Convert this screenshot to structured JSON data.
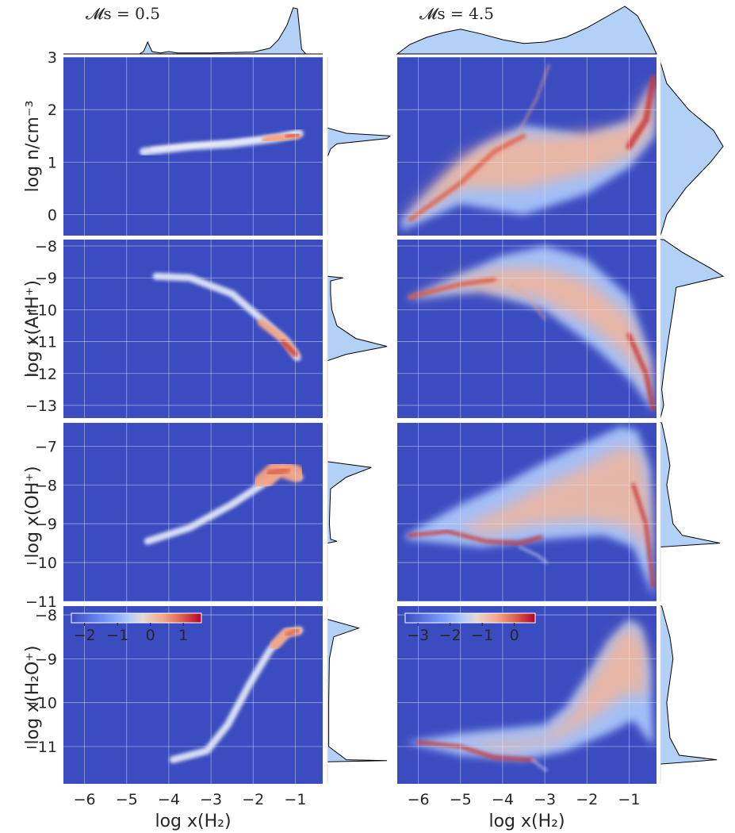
{
  "chart_data": {
    "type": "heatmap",
    "figure": "joint 2D histograms with marginal distributions",
    "xlabel": "log x(H₂)",
    "xlim": [
      -6.5,
      -0.35
    ],
    "xticks": [
      -6,
      -5,
      -4,
      -3,
      -2,
      -1
    ],
    "rows": [
      {
        "key": "n",
        "ylabel": "log n/cm⁻³",
        "ylim": [
          -0.4,
          3.0
        ],
        "yticks": [
          0,
          1,
          2,
          3
        ]
      },
      {
        "key": "ArH",
        "ylabel": "log x(ArH⁺)",
        "ylim": [
          -13.4,
          -7.8
        ],
        "yticks": [
          -8,
          -9,
          -10,
          -11,
          -12,
          -13
        ]
      },
      {
        "key": "OH",
        "ylabel": "log x(OH⁺)",
        "ylim": [
          -11.0,
          -6.4
        ],
        "yticks": [
          -7,
          -8,
          -9,
          -10,
          -11
        ]
      },
      {
        "key": "H2O",
        "ylabel": "log x(H₂O⁺)",
        "ylim": [
          -11.85,
          -7.8
        ],
        "yticks": [
          -8,
          -9,
          -10,
          -11
        ]
      }
    ],
    "columns": [
      {
        "title": "𝓜s = 0.5",
        "mach": 0.5,
        "colorbar": {
          "ticks": [
            -2,
            -1,
            0,
            1
          ],
          "range": [
            -2.4,
            1.55
          ]
        },
        "x_marginal": [
          [
            -4.7,
            0
          ],
          [
            -4.6,
            0.05
          ],
          [
            -4.5,
            0.25
          ],
          [
            -4.4,
            0.05
          ],
          [
            -4.2,
            0.02
          ],
          [
            -4.0,
            0.05
          ],
          [
            -3.8,
            0.02
          ],
          [
            -3,
            0.02
          ],
          [
            -2,
            0.04
          ],
          [
            -1.6,
            0.12
          ],
          [
            -1.4,
            0.3
          ],
          [
            -1.2,
            0.6
          ],
          [
            -1.05,
            0.97
          ],
          [
            -0.95,
            0.95
          ],
          [
            -0.85,
            0.1
          ],
          [
            -0.75,
            0
          ]
        ],
        "y_marginals": {
          "n": [
            [
              1.1,
              0
            ],
            [
              1.25,
              0.05
            ],
            [
              1.35,
              0.15
            ],
            [
              1.45,
              0.95
            ],
            [
              1.5,
              1.0
            ],
            [
              1.55,
              0.3
            ],
            [
              1.65,
              0
            ]
          ],
          "ArH": [
            [
              -8.95,
              0
            ],
            [
              -9.0,
              0.25
            ],
            [
              -9.1,
              0.05
            ],
            [
              -9.5,
              0.05
            ],
            [
              -10.0,
              0.07
            ],
            [
              -10.5,
              0.15
            ],
            [
              -10.9,
              0.45
            ],
            [
              -11.15,
              0.95
            ],
            [
              -11.4,
              0.3
            ],
            [
              -11.6,
              0
            ]
          ],
          "OH": [
            [
              -7.4,
              0
            ],
            [
              -7.55,
              0.7
            ],
            [
              -7.8,
              0.3
            ],
            [
              -8.1,
              0.05
            ],
            [
              -8.5,
              0.04
            ],
            [
              -9.0,
              0.03
            ],
            [
              -9.4,
              0.05
            ],
            [
              -9.45,
              0.15
            ],
            [
              -9.5,
              0
            ]
          ],
          "H2O": [
            [
              -8.1,
              0
            ],
            [
              -8.3,
              0.5
            ],
            [
              -8.5,
              0.1
            ],
            [
              -9.0,
              0.03
            ],
            [
              -10.0,
              0.02
            ],
            [
              -11.0,
              0.02
            ],
            [
              -11.3,
              0.3
            ],
            [
              -11.32,
              0.95
            ],
            [
              -11.35,
              0
            ]
          ]
        }
      },
      {
        "title": "𝓜s = 4.5",
        "mach": 4.5,
        "colorbar": {
          "ticks": [
            -3,
            -2,
            -1,
            0
          ],
          "range": [
            -3.4,
            0.65
          ]
        },
        "x_marginal": [
          [
            -6.5,
            0
          ],
          [
            -6.2,
            0.2
          ],
          [
            -5.8,
            0.35
          ],
          [
            -5.4,
            0.45
          ],
          [
            -5.0,
            0.52
          ],
          [
            -4.5,
            0.42
          ],
          [
            -4.0,
            0.3
          ],
          [
            -3.5,
            0.22
          ],
          [
            -3.0,
            0.25
          ],
          [
            -2.5,
            0.35
          ],
          [
            -2.0,
            0.55
          ],
          [
            -1.5,
            0.8
          ],
          [
            -1.1,
            1.0
          ],
          [
            -0.8,
            0.8
          ],
          [
            -0.5,
            0.3
          ],
          [
            -0.35,
            0
          ]
        ],
        "y_marginals": {
          "n": [
            [
              -0.4,
              0
            ],
            [
              0,
              0.1
            ],
            [
              0.5,
              0.4
            ],
            [
              1.0,
              0.8
            ],
            [
              1.3,
              1.0
            ],
            [
              1.6,
              0.85
            ],
            [
              2.0,
              0.45
            ],
            [
              2.5,
              0.1
            ],
            [
              2.9,
              0
            ]
          ],
          "ArH": [
            [
              -7.8,
              0.05
            ],
            [
              -8.2,
              0.35
            ],
            [
              -8.7,
              0.8
            ],
            [
              -8.95,
              1.0
            ],
            [
              -9.3,
              0.25
            ],
            [
              -10,
              0.2
            ],
            [
              -11,
              0.12
            ],
            [
              -12,
              0.05
            ],
            [
              -12.5,
              0.02
            ],
            [
              -13,
              0.05
            ],
            [
              -13.4,
              0
            ]
          ],
          "OH": [
            [
              -6.4,
              0.02
            ],
            [
              -7,
              0.1
            ],
            [
              -7.5,
              0.15
            ],
            [
              -8,
              0.1
            ],
            [
              -8.5,
              0.15
            ],
            [
              -9,
              0.2
            ],
            [
              -9.3,
              0.35
            ],
            [
              -9.5,
              0.95
            ],
            [
              -9.6,
              0
            ]
          ],
          "H2O": [
            [
              -7.8,
              0.02
            ],
            [
              -8.5,
              0.15
            ],
            [
              -9,
              0.2
            ],
            [
              -9.5,
              0.15
            ],
            [
              -10,
              0.1
            ],
            [
              -10.8,
              0.15
            ],
            [
              -11.2,
              0.3
            ],
            [
              -11.3,
              0.9
            ],
            [
              -11.4,
              0
            ]
          ]
        }
      }
    ]
  },
  "colors": {
    "background": "#3b4cc0",
    "marginal_fill": "#b3d1f7",
    "marginal_line": "#000000",
    "grid": "#eaeaf2"
  }
}
